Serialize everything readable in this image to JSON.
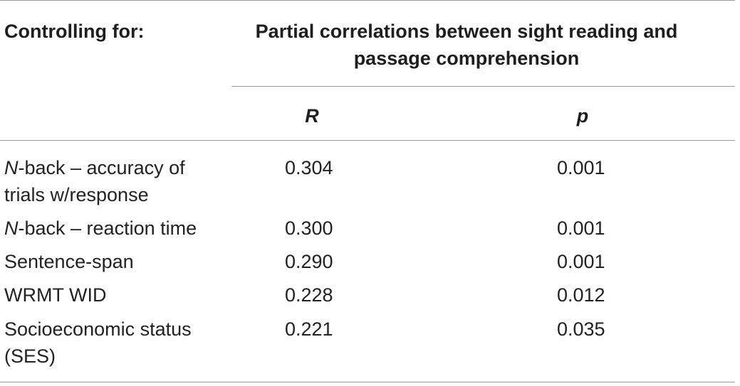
{
  "header": {
    "controlling_label": "Controlling for:",
    "group_title_line1": "Partial correlations between sight reading and",
    "group_title_line2": "passage comprehension",
    "col_r": "R",
    "col_p": "p"
  },
  "rows": [
    {
      "label_italic": "N",
      "label_line1": "-back – accuracy of",
      "label_line2": "trials w/response",
      "r": "0.304",
      "p": "0.001"
    },
    {
      "label_italic": "N",
      "label_line1": "-back – reaction time",
      "label_line2": "",
      "r": "0.300",
      "p": "0.001"
    },
    {
      "label_italic": "",
      "label_line1": "Sentence-span",
      "label_line2": "",
      "r": "0.290",
      "p": "0.001"
    },
    {
      "label_italic": "",
      "label_line1": "WRMT WID",
      "label_line2": "",
      "r": "0.228",
      "p": "0.012"
    },
    {
      "label_italic": "",
      "label_line1": "Socioeconomic status",
      "label_line2": "(SES)",
      "r": "0.221",
      "p": "0.035"
    }
  ]
}
